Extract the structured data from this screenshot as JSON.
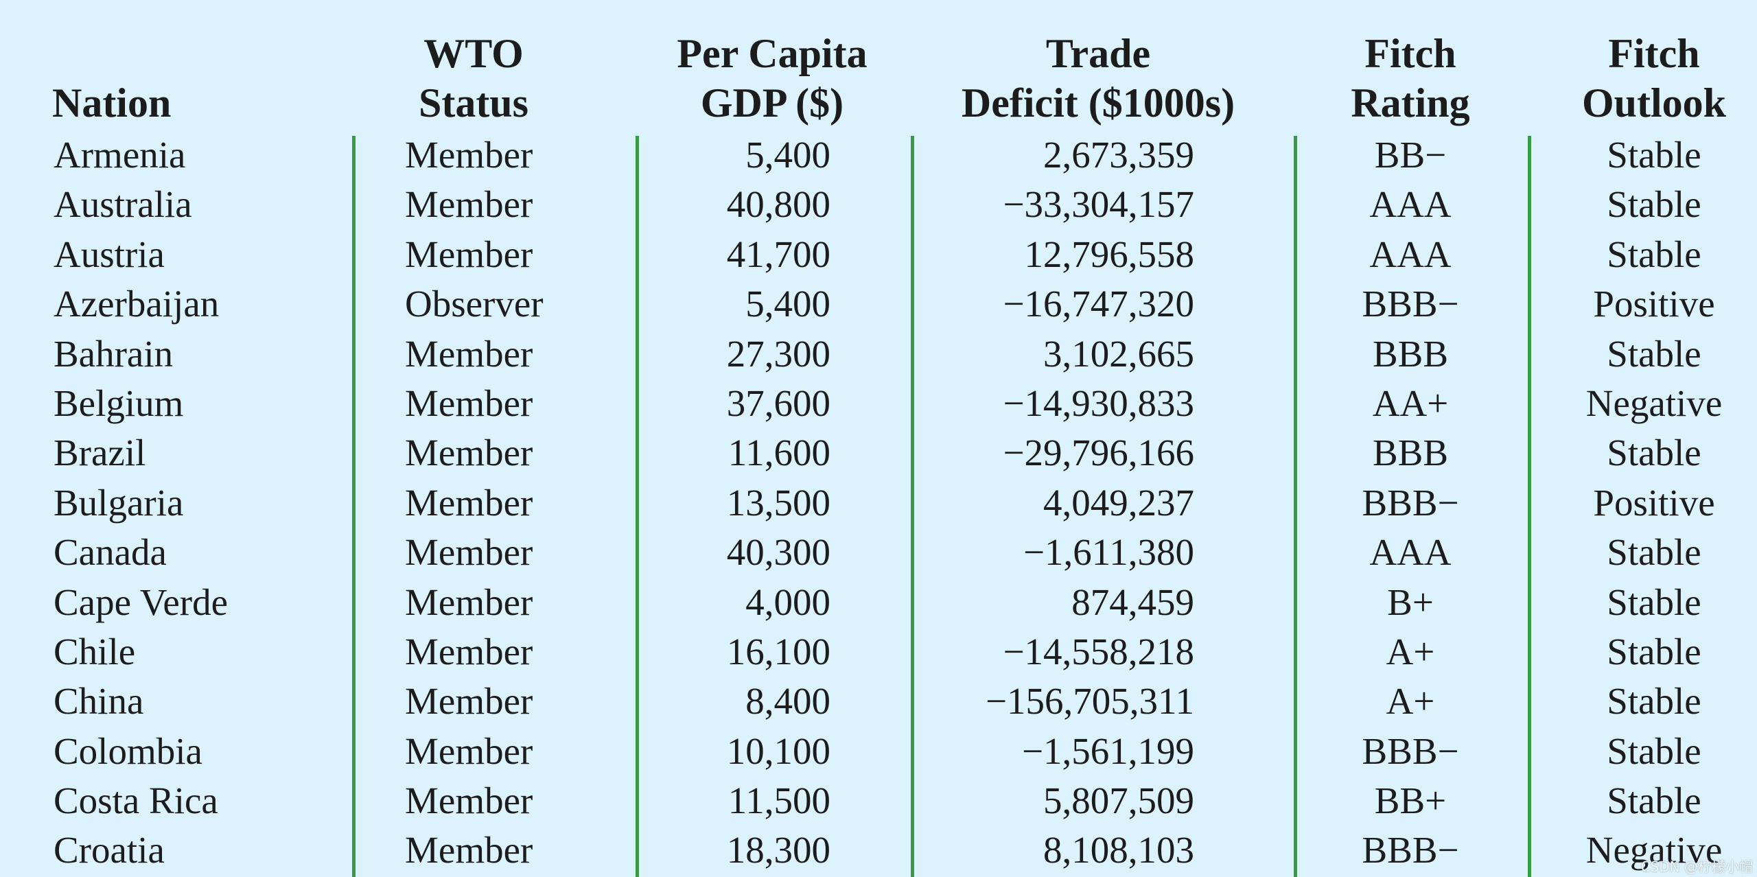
{
  "headers": {
    "nation": [
      "",
      "Nation"
    ],
    "wto_status": [
      "WTO",
      "Status"
    ],
    "per_capita_gdp": [
      "Per Capita",
      "GDP ($)"
    ],
    "trade_deficit": [
      "Trade",
      "Deficit ($1000s)"
    ],
    "fitch_rating": [
      "Fitch",
      "Rating"
    ],
    "fitch_outlook": [
      "Fitch",
      "Outlook"
    ]
  },
  "rows": [
    {
      "nation": "Armenia",
      "wto": "Member",
      "gdp": "5,400",
      "trade": "2,673,359",
      "rating": "BB−",
      "outlook": "Stable"
    },
    {
      "nation": "Australia",
      "wto": "Member",
      "gdp": "40,800",
      "trade": "−33,304,157",
      "rating": "AAA",
      "outlook": "Stable"
    },
    {
      "nation": "Austria",
      "wto": "Member",
      "gdp": "41,700",
      "trade": "12,796,558",
      "rating": "AAA",
      "outlook": "Stable"
    },
    {
      "nation": "Azerbaijan",
      "wto": "Observer",
      "gdp": "5,400",
      "trade": "−16,747,320",
      "rating": "BBB−",
      "outlook": "Positive"
    },
    {
      "nation": "Bahrain",
      "wto": "Member",
      "gdp": "27,300",
      "trade": "3,102,665",
      "rating": "BBB",
      "outlook": "Stable"
    },
    {
      "nation": "Belgium",
      "wto": "Member",
      "gdp": "37,600",
      "trade": "−14,930,833",
      "rating": "AA+",
      "outlook": "Negative"
    },
    {
      "nation": "Brazil",
      "wto": "Member",
      "gdp": "11,600",
      "trade": "−29,796,166",
      "rating": "BBB",
      "outlook": "Stable"
    },
    {
      "nation": "Bulgaria",
      "wto": "Member",
      "gdp": "13,500",
      "trade": "4,049,237",
      "rating": "BBB−",
      "outlook": "Positive"
    },
    {
      "nation": "Canada",
      "wto": "Member",
      "gdp": "40,300",
      "trade": "−1,611,380",
      "rating": "AAA",
      "outlook": "Stable"
    },
    {
      "nation": "Cape Verde",
      "wto": "Member",
      "gdp": "4,000",
      "trade": "874,459",
      "rating": "B+",
      "outlook": "Stable"
    },
    {
      "nation": "Chile",
      "wto": "Member",
      "gdp": "16,100",
      "trade": "−14,558,218",
      "rating": "A+",
      "outlook": "Stable"
    },
    {
      "nation": "China",
      "wto": "Member",
      "gdp": "8,400",
      "trade": "−156,705,311",
      "rating": "A+",
      "outlook": "Stable"
    },
    {
      "nation": "Colombia",
      "wto": "Member",
      "gdp": "10,100",
      "trade": "−1,561,199",
      "rating": "BBB−",
      "outlook": "Stable"
    },
    {
      "nation": "Costa Rica",
      "wto": "Member",
      "gdp": "11,500",
      "trade": "5,807,509",
      "rating": "BB+",
      "outlook": "Stable"
    },
    {
      "nation": "Croatia",
      "wto": "Member",
      "gdp": "18,300",
      "trade": "8,108,103",
      "rating": "BBB−",
      "outlook": "Negative"
    }
  ],
  "watermark": "CSDN @柠檬小帽",
  "colors": {
    "background": "#dcf2fc",
    "divider": "#3a9a44",
    "text": "#1c1c1c"
  }
}
